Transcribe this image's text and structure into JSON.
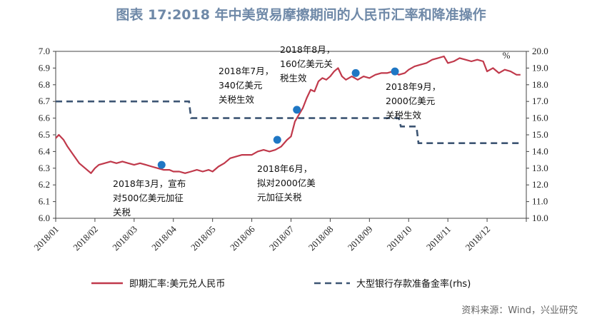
{
  "title": "图表 17:2018 年中美贸易摩擦期间的人民币汇率和降准操作",
  "source": "资料来源：Wind，兴业研究",
  "colors": {
    "fx_line": "#c0394b",
    "rrr_line": "#3d5573",
    "marker": "#1f77c4",
    "title": "#6f89a8"
  },
  "chart_data": {
    "type": "line",
    "x_categories": [
      "2018/01",
      "2018/02",
      "2018/03",
      "2018/04",
      "2018/05",
      "2018/06",
      "2018/07",
      "2018/08",
      "2018/09",
      "2018/10",
      "2018/11",
      "2018/12"
    ],
    "y_left": {
      "min": 6.0,
      "max": 7.0,
      "ticks": [
        "6.0",
        "6.1",
        "6.2",
        "6.3",
        "6.4",
        "6.5",
        "6.6",
        "6.7",
        "6.8",
        "6.9",
        "7.0"
      ]
    },
    "y_right": {
      "min": 10.0,
      "max": 20.0,
      "unit": "%",
      "ticks": [
        "10.0",
        "11.0",
        "12.0",
        "13.0",
        "14.0",
        "15.0",
        "16.0",
        "17.0",
        "18.0",
        "19.0",
        "20.0"
      ]
    },
    "series": [
      {
        "name": "即期汇率:美元兑人民币",
        "axis": "left",
        "style": "solid",
        "points": [
          [
            0.0,
            6.48
          ],
          [
            0.08,
            6.5
          ],
          [
            0.2,
            6.47
          ],
          [
            0.3,
            6.43
          ],
          [
            0.45,
            6.38
          ],
          [
            0.6,
            6.33
          ],
          [
            0.75,
            6.3
          ],
          [
            0.9,
            6.27
          ],
          [
            1.0,
            6.3
          ],
          [
            1.1,
            6.32
          ],
          [
            1.25,
            6.33
          ],
          [
            1.4,
            6.34
          ],
          [
            1.55,
            6.33
          ],
          [
            1.7,
            6.34
          ],
          [
            1.85,
            6.33
          ],
          [
            2.0,
            6.32
          ],
          [
            2.15,
            6.33
          ],
          [
            2.3,
            6.32
          ],
          [
            2.45,
            6.31
          ],
          [
            2.6,
            6.3
          ],
          [
            2.75,
            6.29
          ],
          [
            2.9,
            6.29
          ],
          [
            3.0,
            6.28
          ],
          [
            3.15,
            6.28
          ],
          [
            3.3,
            6.27
          ],
          [
            3.45,
            6.28
          ],
          [
            3.6,
            6.29
          ],
          [
            3.75,
            6.28
          ],
          [
            3.9,
            6.29
          ],
          [
            4.0,
            6.28
          ],
          [
            4.15,
            6.31
          ],
          [
            4.3,
            6.33
          ],
          [
            4.45,
            6.36
          ],
          [
            4.6,
            6.37
          ],
          [
            4.75,
            6.38
          ],
          [
            4.9,
            6.38
          ],
          [
            5.0,
            6.38
          ],
          [
            5.15,
            6.4
          ],
          [
            5.3,
            6.41
          ],
          [
            5.45,
            6.4
          ],
          [
            5.6,
            6.41
          ],
          [
            5.75,
            6.43
          ],
          [
            5.9,
            6.47
          ],
          [
            6.0,
            6.49
          ],
          [
            6.1,
            6.58
          ],
          [
            6.2,
            6.62
          ],
          [
            6.3,
            6.66
          ],
          [
            6.4,
            6.72
          ],
          [
            6.5,
            6.77
          ],
          [
            6.6,
            6.76
          ],
          [
            6.7,
            6.82
          ],
          [
            6.8,
            6.84
          ],
          [
            6.9,
            6.83
          ],
          [
            7.0,
            6.85
          ],
          [
            7.1,
            6.88
          ],
          [
            7.2,
            6.9
          ],
          [
            7.3,
            6.85
          ],
          [
            7.4,
            6.83
          ],
          [
            7.55,
            6.85
          ],
          [
            7.7,
            6.83
          ],
          [
            7.85,
            6.85
          ],
          [
            8.0,
            6.84
          ],
          [
            8.15,
            6.86
          ],
          [
            8.3,
            6.87
          ],
          [
            8.45,
            6.87
          ],
          [
            8.6,
            6.88
          ],
          [
            8.75,
            6.86
          ],
          [
            8.9,
            6.87
          ],
          [
            9.0,
            6.89
          ],
          [
            9.15,
            6.91
          ],
          [
            9.3,
            6.92
          ],
          [
            9.45,
            6.93
          ],
          [
            9.6,
            6.95
          ],
          [
            9.75,
            6.96
          ],
          [
            9.9,
            6.97
          ],
          [
            10.0,
            6.93
          ],
          [
            10.15,
            6.94
          ],
          [
            10.3,
            6.96
          ],
          [
            10.45,
            6.95
          ],
          [
            10.6,
            6.94
          ],
          [
            10.75,
            6.95
          ],
          [
            10.9,
            6.94
          ],
          [
            11.0,
            6.88
          ],
          [
            11.15,
            6.9
          ],
          [
            11.3,
            6.87
          ],
          [
            11.45,
            6.89
          ],
          [
            11.6,
            6.88
          ],
          [
            11.75,
            6.86
          ],
          [
            11.85,
            6.86
          ]
        ]
      },
      {
        "name": "大型银行存款准备金率(rhs)",
        "axis": "right",
        "style": "dashed",
        "points": [
          [
            0.0,
            17.0
          ],
          [
            3.4,
            17.0
          ],
          [
            3.45,
            16.0
          ],
          [
            8.75,
            16.0
          ],
          [
            8.8,
            15.5
          ],
          [
            9.2,
            15.5
          ],
          [
            9.25,
            14.5
          ],
          [
            11.9,
            14.5
          ]
        ]
      }
    ],
    "markers": [
      {
        "x": 2.7,
        "y": 6.32
      },
      {
        "x": 5.65,
        "y": 6.47
      },
      {
        "x": 6.15,
        "y": 6.65
      },
      {
        "x": 7.65,
        "y": 6.87
      },
      {
        "x": 8.65,
        "y": 6.88
      }
    ],
    "annotations": [
      {
        "lines": [
          "2018年3月，宣布",
          "对500亿美元加征",
          "关税"
        ]
      },
      {
        "lines": [
          "2018年6月，",
          "拟对2000亿美",
          "元加征关税"
        ]
      },
      {
        "lines": [
          "2018年7月，",
          "340亿美元",
          "关税生效"
        ]
      },
      {
        "lines": [
          "2018年8月，",
          "160亿美元关",
          "税生效"
        ]
      },
      {
        "lines": [
          "2018年9月，",
          "2000亿美元",
          "关税生效"
        ]
      }
    ]
  }
}
